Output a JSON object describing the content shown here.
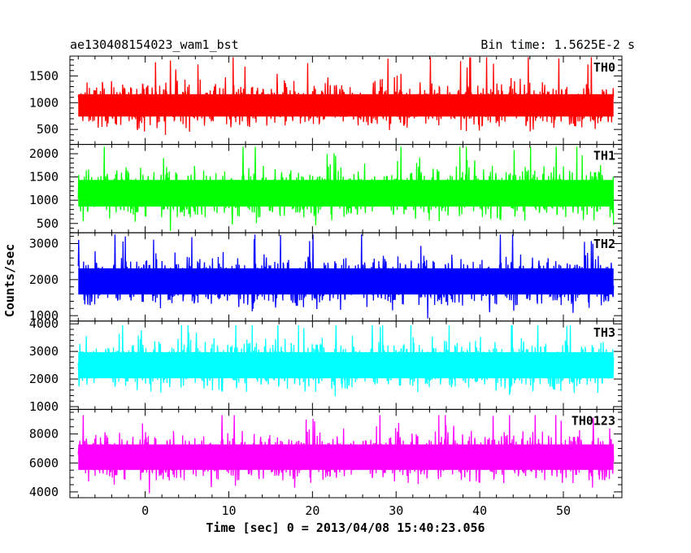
{
  "header": {
    "left_title": "ae130408154023_wam1_bst",
    "right_title": "Bin time: 1.5625E-2 s"
  },
  "chart_data": {
    "type": "line",
    "title": "ae130408154023_wam1_bst",
    "subtitle": "Bin time: 1.5625E-2 s",
    "xlabel": "Time [sec] 0 = 2013/04/08 15:40:23.056",
    "ylabel": "Counts/sec",
    "xlim": [
      -9,
      57
    ],
    "data_xrange": [
      -8,
      56
    ],
    "x_ticks": [
      0,
      10,
      20,
      30,
      40,
      50
    ],
    "x_minor_step": 2,
    "grid": false,
    "panels": [
      {
        "name": "TH0",
        "color": "#ff0000",
        "ylim": [
          220,
          1870
        ],
        "y_ticks": [
          500,
          1000,
          1500
        ],
        "y_minor_step": 100,
        "mean": 950,
        "spread": 190,
        "min": 230,
        "max": 1850
      },
      {
        "name": "TH1",
        "color": "#00ff00",
        "ylim": [
          300,
          2200
        ],
        "y_ticks": [
          500,
          1000,
          1500,
          2000
        ],
        "y_minor_step": 100,
        "mean": 1150,
        "spread": 260,
        "min": 330,
        "max": 2150
      },
      {
        "name": "TH2",
        "color": "#0000ff",
        "ylim": [
          850,
          3300
        ],
        "y_ticks": [
          1000,
          2000,
          3000
        ],
        "y_minor_step": 200,
        "mean": 1950,
        "spread": 330,
        "min": 880,
        "max": 3250
      },
      {
        "name": "TH3",
        "color": "#00ffff",
        "ylim": [
          900,
          4100
        ],
        "y_ticks": [
          1000,
          2000,
          3000,
          4000
        ],
        "y_minor_step": 200,
        "mean": 2500,
        "spread": 430,
        "min": 950,
        "max": 3950
      },
      {
        "name": "TH0123",
        "color": "#ff00ff",
        "ylim": [
          3600,
          9700
        ],
        "y_ticks": [
          4000,
          6000,
          8000
        ],
        "y_minor_step": 500,
        "mean": 6400,
        "spread": 800,
        "min": 3700,
        "max": 9300
      }
    ]
  }
}
